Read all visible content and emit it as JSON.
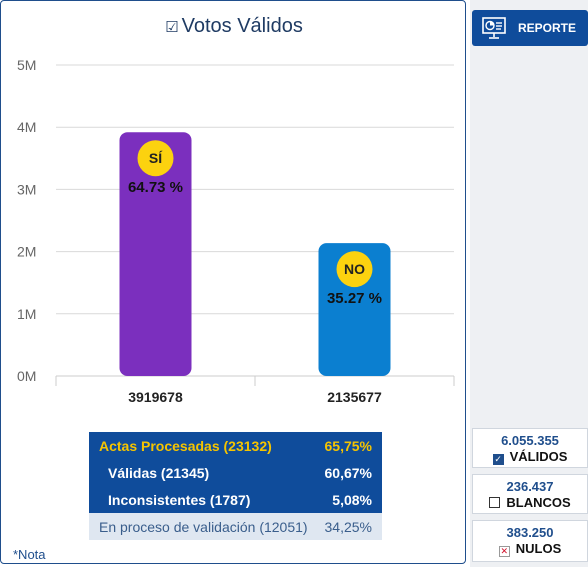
{
  "chart_data": {
    "type": "bar",
    "title": "Votos Válidos",
    "categories": [
      "3919678",
      "2135677"
    ],
    "values": [
      3919678,
      2135677
    ],
    "bar_colors": [
      "#7b2fbe",
      "#0b7fd0"
    ],
    "badges": [
      {
        "label": "SÍ",
        "percent": "64.73 %"
      },
      {
        "label": "NO",
        "percent": "35.27 %"
      }
    ],
    "ylim": [
      0,
      5000000
    ],
    "yticks": [
      {
        "value": 0,
        "label": "0M"
      },
      {
        "value": 1000000,
        "label": "1M"
      },
      {
        "value": 2000000,
        "label": "2M"
      },
      {
        "value": 3000000,
        "label": "3M"
      },
      {
        "value": 4000000,
        "label": "4M"
      },
      {
        "value": 5000000,
        "label": "5M"
      }
    ],
    "grid": true,
    "xlabel": "",
    "ylabel": ""
  },
  "summary": {
    "actas": {
      "label": "Actas Procesadas (23132)",
      "value": "65,75%"
    },
    "validas": {
      "label": "Válidas (21345)",
      "value": "60,67%"
    },
    "inconsistentes": {
      "label": "Inconsistentes (1787)",
      "value": "5,08%"
    },
    "proceso": {
      "label": "En proceso de validación (12051)",
      "value": "34,25%"
    }
  },
  "note": "*Nota",
  "reporte_label": "REPORTE",
  "stats": {
    "validos": {
      "number": "6.055.355",
      "label": "VÁLIDOS"
    },
    "blancos": {
      "number": "236.437",
      "label": "BLANCOS"
    },
    "nulos": {
      "number": "383.250",
      "label": "NULOS"
    }
  },
  "colors": {
    "primary": "#0f4c9b",
    "accent": "#f5c400",
    "badge": "#fcd20f"
  }
}
